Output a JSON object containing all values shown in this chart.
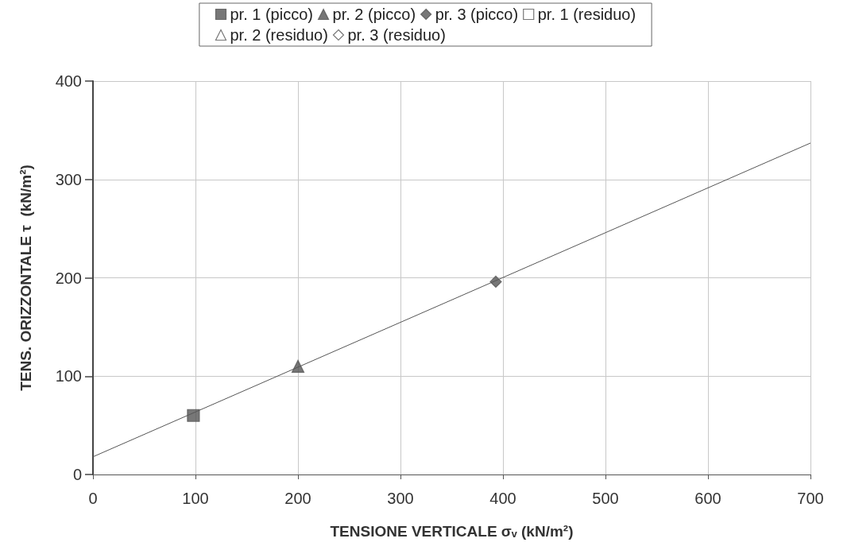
{
  "chart_data": {
    "type": "scatter",
    "xlabel": "TENSIONE VERTICALE σᵥ (kN/m²)",
    "ylabel": "TENS. ORIZZONTALE τ  (kN/m²)",
    "xlim": [
      0,
      700
    ],
    "xticks": [
      0,
      100,
      200,
      300,
      400,
      500,
      600,
      700
    ],
    "ylim": [
      0,
      400
    ],
    "yticks": [
      0,
      100,
      200,
      300,
      400
    ],
    "grid": true,
    "legend": "top",
    "series": [
      {
        "name": "pr. 1 (picco)",
        "color": "#555555",
        "marker": "square",
        "x": [
          98
        ],
        "values": [
          60
        ]
      },
      {
        "name": "pr. 2 (picco)",
        "color": "#555555",
        "marker": "triangle",
        "x": [
          200
        ],
        "values": [
          110
        ]
      },
      {
        "name": "pr. 3 (picco)",
        "color": "#555555",
        "marker": "diamond",
        "x": [
          393
        ],
        "values": [
          196
        ]
      },
      {
        "name": "pr. 1 (residuo)",
        "color": "#ffffff",
        "marker": "square"
      },
      {
        "name": "pr. 2 (residuo)",
        "color": "#ffffff",
        "marker": "triangle"
      },
      {
        "name": "pr. 3 (residuo)",
        "color": "#ffffff",
        "marker": "diamond"
      },
      {
        "type": "line",
        "color": "#555555",
        "marker": "none",
        "x": [
          0,
          700
        ],
        "values": [
          18,
          337
        ]
      }
    ]
  }
}
